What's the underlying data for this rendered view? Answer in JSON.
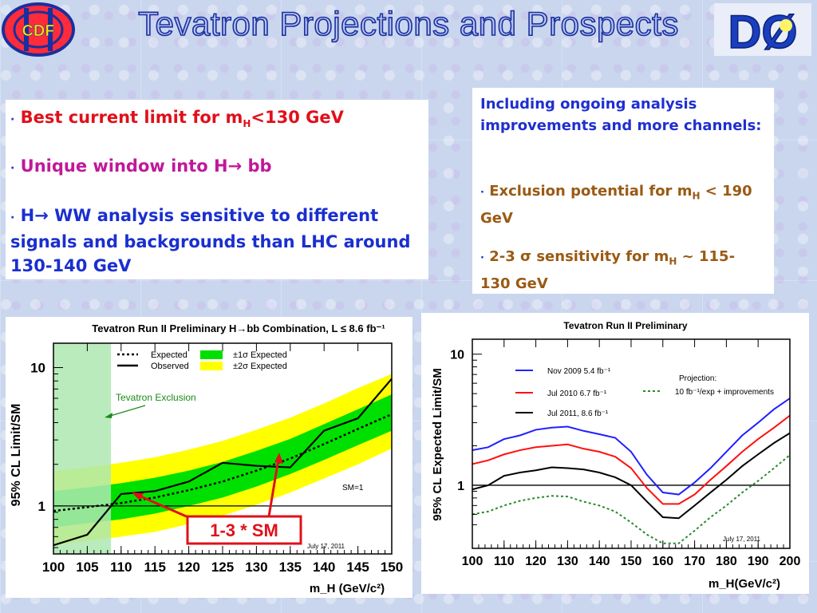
{
  "header": {
    "title": "Tevatron Projections and Prospects",
    "cdf_logo_text": "CDF",
    "d0_logo_text": "DØ"
  },
  "left_box": {
    "bullet": "·",
    "item1_text": "Best current limit for m",
    "item1_sub": "H",
    "item1_tail": "<130 GeV",
    "item2": "Unique window into H→ bb",
    "item3": "H→ WW analysis sensitive to different signals and backgrounds than LHC around 130-140 GeV"
  },
  "right_box": {
    "intro": "Including ongoing analysis improvements and more channels:",
    "item1_text": "Exclusion potential for m",
    "item1_sub": "H",
    "item1_tail": " < 190 GeV",
    "item2_pre": "2-3 ",
    "item2_sigma": "σ",
    "item2_post": " sensitivity for m",
    "item2_sub": "H",
    "item2_tail": " ~ 115-130 GeV"
  },
  "colors": {
    "title_stroke": "#1a2f9e",
    "green_band": "#00e000",
    "yellow_band": "#ffff00",
    "exclusion": "#aee8b0",
    "blue_curve": "#2020ff",
    "red_curve": "#ff1010",
    "black_curve": "#000000",
    "projection_curve": "#2a8a2a",
    "callout_red": "#e0101a"
  },
  "chart_data": [
    {
      "type": "line",
      "title": "Tevatron Run II Preliminary H→bb Combination, L ≤ 8.6 fb⁻¹",
      "xlabel": "m_H (GeV/c²)",
      "ylabel": "95% CL Limit/SM",
      "log_y": true,
      "xlim": [
        100,
        150
      ],
      "ylim": [
        0.45,
        15
      ],
      "xticks": [
        "100",
        "105",
        "110",
        "115",
        "120",
        "125",
        "130",
        "135",
        "140",
        "145",
        "150"
      ],
      "yticks": [
        "1",
        "10"
      ],
      "x": [
        100,
        105,
        110,
        115,
        120,
        125,
        130,
        135,
        140,
        145,
        150
      ],
      "series": [
        {
          "name": "Observed",
          "values": [
            0.52,
            0.62,
            1.22,
            1.28,
            1.5,
            2.05,
            1.95,
            1.9,
            3.5,
            4.3,
            8.3
          ]
        },
        {
          "name": "Expected",
          "values": [
            0.92,
            0.98,
            1.05,
            1.15,
            1.3,
            1.5,
            1.8,
            2.2,
            2.8,
            3.6,
            4.6
          ]
        },
        {
          "name": "±1σ Expected",
          "lower": [
            0.7,
            0.75,
            0.8,
            0.88,
            1.0,
            1.15,
            1.38,
            1.7,
            2.15,
            2.75,
            3.5
          ],
          "upper": [
            1.28,
            1.36,
            1.46,
            1.6,
            1.8,
            2.08,
            2.5,
            3.05,
            3.9,
            5.0,
            6.4
          ]
        },
        {
          "name": "±2σ Expected",
          "lower": [
            0.52,
            0.56,
            0.6,
            0.65,
            0.74,
            0.85,
            1.02,
            1.25,
            1.58,
            2.0,
            2.6
          ],
          "upper": [
            1.78,
            1.9,
            2.05,
            2.25,
            2.55,
            2.95,
            3.55,
            4.35,
            5.5,
            7.1,
            9.0
          ]
        }
      ],
      "exclusion_range": [
        100,
        108.5
      ],
      "sm_line": 1,
      "annotations": {
        "sm": "SM=1",
        "exclusion": "Tevatron Exclusion",
        "date": "July 17, 2011",
        "callout": "1-3 * SM"
      },
      "legend": {
        "expected": "Expected",
        "observed": "Observed",
        "one_sigma": "±1σ Expected",
        "two_sigma": "±2σ Expected"
      }
    },
    {
      "type": "line",
      "title": "Tevatron Run II Preliminary",
      "xlabel": "m_H(GeV/c²)",
      "ylabel": "95% CL Expected Limit/SM",
      "log_y": true,
      "xlim": [
        100,
        200
      ],
      "ylim": [
        0.33,
        13
      ],
      "xticks": [
        "100",
        "110",
        "120",
        "130",
        "140",
        "150",
        "160",
        "170",
        "180",
        "190",
        "200"
      ],
      "yticks": [
        "1",
        "10"
      ],
      "x": [
        100,
        105,
        110,
        115,
        120,
        125,
        130,
        135,
        140,
        145,
        150,
        155,
        160,
        165,
        170,
        175,
        180,
        185,
        190,
        195,
        200
      ],
      "series": [
        {
          "name": "Nov 2009 5.4 fb⁻¹",
          "values": [
            1.85,
            1.95,
            2.25,
            2.4,
            2.65,
            2.75,
            2.8,
            2.6,
            2.45,
            2.3,
            1.8,
            1.2,
            0.88,
            0.85,
            1.05,
            1.35,
            1.8,
            2.4,
            3.0,
            3.8,
            4.6
          ]
        },
        {
          "name": "Jul 2010 6.7 fb⁻¹",
          "values": [
            1.45,
            1.55,
            1.72,
            1.85,
            1.95,
            2.0,
            2.05,
            1.9,
            1.8,
            1.65,
            1.35,
            0.95,
            0.72,
            0.72,
            0.85,
            1.1,
            1.4,
            1.8,
            2.25,
            2.75,
            3.4
          ]
        },
        {
          "name": "Jul 2011, 8.6 fb⁻¹",
          "values": [
            0.93,
            1.0,
            1.18,
            1.25,
            1.3,
            1.37,
            1.35,
            1.32,
            1.25,
            1.15,
            1.0,
            0.75,
            0.57,
            0.56,
            0.7,
            0.88,
            1.1,
            1.4,
            1.72,
            2.1,
            2.5
          ]
        },
        {
          "name": "10 fb⁻¹/exp + improvements",
          "values": [
            0.6,
            0.63,
            0.7,
            0.76,
            0.8,
            0.83,
            0.82,
            0.75,
            0.7,
            0.63,
            0.52,
            0.42,
            0.36,
            0.36,
            0.45,
            0.57,
            0.7,
            0.88,
            1.08,
            1.35,
            1.7
          ]
        }
      ],
      "sm_line": 1,
      "annotations": {
        "projection": "Projection:",
        "date": "July 17, 2011"
      }
    }
  ]
}
